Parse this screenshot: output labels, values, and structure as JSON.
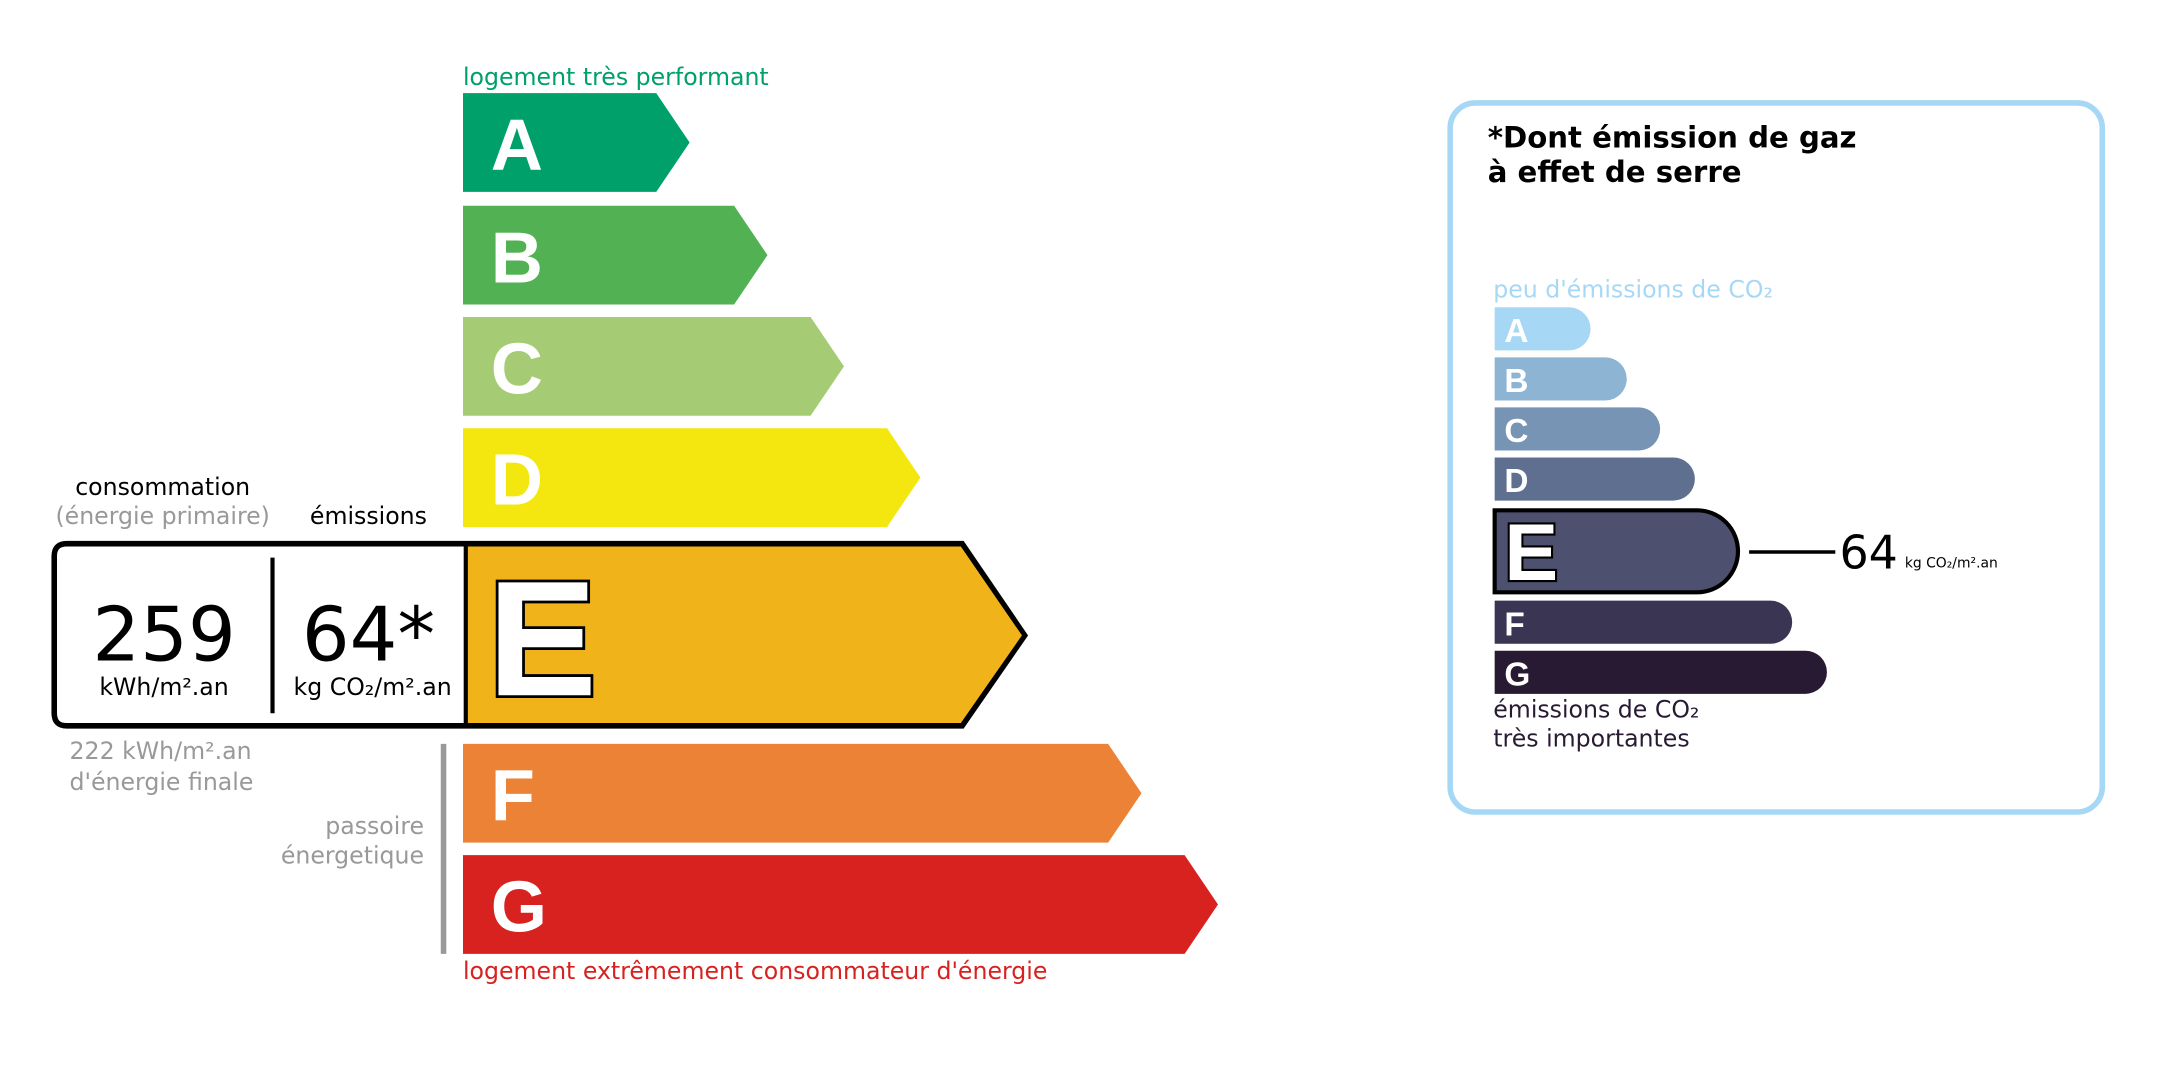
{
  "dpe": {
    "top_label": "logement très performant",
    "bottom_label": "logement extrêmement consommateur d'énergie",
    "classes": [
      {
        "letter": "A",
        "color": "#00a06a"
      },
      {
        "letter": "B",
        "color": "#52b153"
      },
      {
        "letter": "C",
        "color": "#a5cc74"
      },
      {
        "letter": "D",
        "color": "#f4e70f"
      },
      {
        "letter": "E",
        "color": "#f0b41a"
      },
      {
        "letter": "F",
        "color": "#ec8235"
      },
      {
        "letter": "G",
        "color": "#d7221f"
      }
    ],
    "current_class": "E",
    "consumption_label": "consommation",
    "consumption_sub": "(énergie primaire)",
    "emissions_label": "émissions",
    "consumption_value": "259",
    "consumption_unit": "kWh/m².an",
    "emissions_value": "64*",
    "emissions_unit": "kg CO₂/m².an",
    "final_energy_line1": "222 kWh/m².an",
    "final_energy_line2": "d'énergie finale",
    "passoire_line1": "passoire",
    "passoire_line2": "énergetique"
  },
  "ges": {
    "title_line1": "*Dont émission de gaz",
    "title_line2": "à effet de serre",
    "top_label": "peu d'émissions de CO₂",
    "bottom_label_line1": "émissions de CO₂",
    "bottom_label_line2": "très importantes",
    "classes": [
      {
        "letter": "A",
        "color": "#a6d8f5"
      },
      {
        "letter": "B",
        "color": "#8db4d3"
      },
      {
        "letter": "C",
        "color": "#7794b4"
      },
      {
        "letter": "D",
        "color": "#5f6f8f"
      },
      {
        "letter": "E",
        "color": "#4d506f"
      },
      {
        "letter": "F",
        "color": "#393552"
      },
      {
        "letter": "G",
        "color": "#281a33"
      }
    ],
    "current_class": "E",
    "value": "64",
    "unit": "kg CO₂/m².an",
    "border_color": "#a6d8f5"
  }
}
